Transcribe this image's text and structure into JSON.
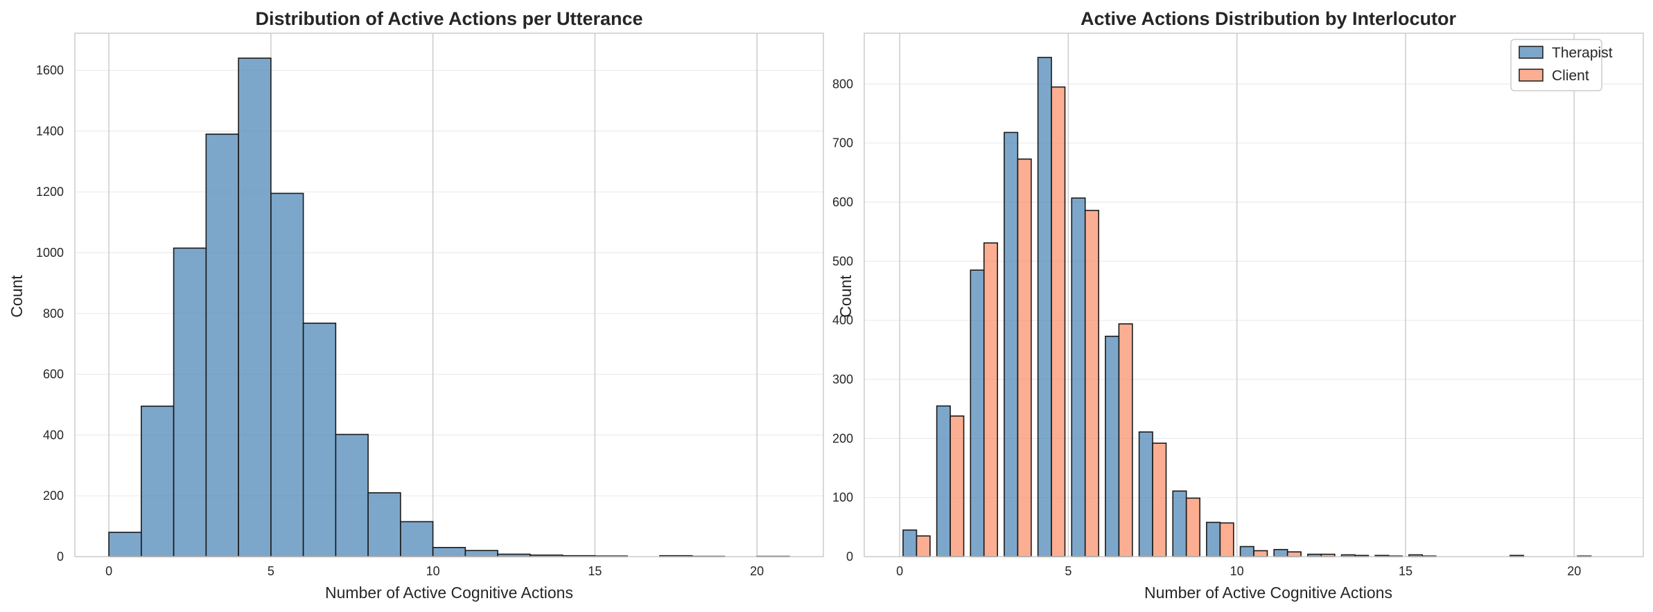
{
  "chart_data": [
    {
      "type": "bar",
      "title": "Distribution of Active Actions per Utterance",
      "xlabel": "Number of Active Cognitive Actions",
      "ylabel": "Count",
      "xlim": [
        -1.05,
        22.05
      ],
      "ylim": [
        0,
        1722
      ],
      "xticks": [
        0,
        5,
        10,
        15,
        20
      ],
      "yticks": [
        0,
        200,
        400,
        600,
        800,
        1000,
        1200,
        1400,
        1600
      ],
      "grid": true,
      "bin_edges": [
        0,
        1,
        2,
        3,
        4,
        5,
        6,
        7,
        8,
        9,
        10,
        11,
        12,
        13,
        14,
        15,
        16,
        17,
        18,
        19,
        20,
        21
      ],
      "series": [
        {
          "color": "#4682b4",
          "values": [
            80,
            495,
            1015,
            1390,
            1640,
            1195,
            768,
            402,
            210,
            115,
            30,
            20,
            8,
            5,
            3,
            2,
            0,
            3,
            1,
            0,
            1
          ]
        }
      ]
    },
    {
      "type": "bar",
      "title": "Active Actions Distribution by Interlocutor",
      "xlabel": "Number of Active Cognitive Actions",
      "ylabel": "Count",
      "xlim": [
        -1.05,
        22.05
      ],
      "ylim": [
        0,
        886
      ],
      "xticks": [
        0,
        5,
        10,
        15,
        20
      ],
      "yticks": [
        0,
        100,
        200,
        300,
        400,
        500,
        600,
        700,
        800
      ],
      "grid": true,
      "legend_position": "top-right",
      "bin_edges": [
        0,
        1,
        2,
        3,
        4,
        5,
        6,
        7,
        8,
        9,
        10,
        11,
        12,
        13,
        14,
        15,
        16,
        17,
        18,
        19,
        20,
        21
      ],
      "series": [
        {
          "name": "Therapist",
          "color": "#4682b4",
          "values": [
            45,
            255,
            485,
            718,
            845,
            607,
            373,
            211,
            111,
            58,
            17,
            12,
            4,
            3,
            2,
            3,
            0,
            0,
            2,
            0,
            1
          ]
        },
        {
          "name": "Client",
          "color": "#fa8c64",
          "values": [
            35,
            238,
            531,
            673,
            795,
            586,
            394,
            192,
            99,
            57,
            10,
            8,
            4,
            2,
            1,
            1,
            0,
            0,
            0,
            0,
            0
          ]
        }
      ]
    }
  ]
}
